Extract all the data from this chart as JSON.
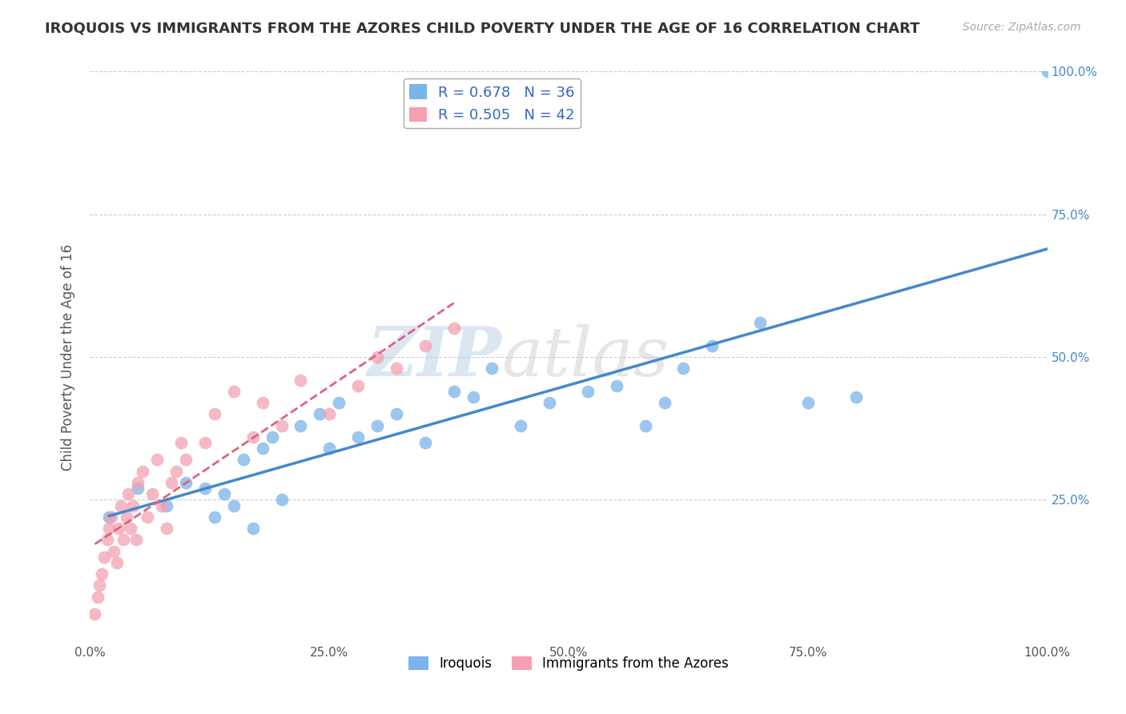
{
  "title": "IROQUOIS VS IMMIGRANTS FROM THE AZORES CHILD POVERTY UNDER THE AGE OF 16 CORRELATION CHART",
  "source": "Source: ZipAtlas.com",
  "ylabel": "Child Poverty Under the Age of 16",
  "r_iroquois": 0.678,
  "n_iroquois": 36,
  "r_azores": 0.505,
  "n_azores": 42,
  "xlim": [
    0,
    1.0
  ],
  "ylim": [
    0,
    1.0
  ],
  "xtick_labels": [
    "0.0%",
    "25.0%",
    "50.0%",
    "75.0%",
    "100.0%"
  ],
  "xtick_vals": [
    0.0,
    0.25,
    0.5,
    0.75,
    1.0
  ],
  "ytick_vals": [
    0.25,
    0.5,
    0.75,
    1.0
  ],
  "ytick_labels": [
    "25.0%",
    "50.0%",
    "75.0%",
    "100.0%"
  ],
  "color_iroquois": "#7ab4e8",
  "color_azores": "#f4a0b0",
  "line_color_iroquois": "#4488cc",
  "line_color_azores": "#e06080",
  "background_color": "#ffffff",
  "watermark_text": "ZIP",
  "watermark_text2": "atlas",
  "iroquois_x": [
    0.02,
    0.05,
    0.08,
    0.1,
    0.12,
    0.13,
    0.14,
    0.15,
    0.16,
    0.17,
    0.18,
    0.19,
    0.2,
    0.22,
    0.24,
    0.25,
    0.26,
    0.28,
    0.3,
    0.32,
    0.35,
    0.38,
    0.4,
    0.42,
    0.45,
    0.48,
    0.52,
    0.55,
    0.58,
    0.6,
    0.62,
    0.65,
    0.7,
    0.75,
    0.8,
    1.0
  ],
  "iroquois_y": [
    0.22,
    0.27,
    0.24,
    0.28,
    0.27,
    0.22,
    0.26,
    0.24,
    0.32,
    0.2,
    0.34,
    0.36,
    0.25,
    0.38,
    0.4,
    0.34,
    0.42,
    0.36,
    0.38,
    0.4,
    0.35,
    0.44,
    0.43,
    0.48,
    0.38,
    0.42,
    0.44,
    0.45,
    0.38,
    0.42,
    0.48,
    0.52,
    0.56,
    0.42,
    0.43,
    1.0
  ],
  "azores_x": [
    0.005,
    0.008,
    0.01,
    0.012,
    0.015,
    0.018,
    0.02,
    0.022,
    0.025,
    0.028,
    0.03,
    0.032,
    0.035,
    0.038,
    0.04,
    0.042,
    0.045,
    0.048,
    0.05,
    0.055,
    0.06,
    0.065,
    0.07,
    0.075,
    0.08,
    0.085,
    0.09,
    0.095,
    0.1,
    0.12,
    0.13,
    0.15,
    0.17,
    0.18,
    0.2,
    0.22,
    0.25,
    0.28,
    0.3,
    0.32,
    0.35,
    0.38
  ],
  "azores_y": [
    0.05,
    0.08,
    0.1,
    0.12,
    0.15,
    0.18,
    0.2,
    0.22,
    0.16,
    0.14,
    0.2,
    0.24,
    0.18,
    0.22,
    0.26,
    0.2,
    0.24,
    0.18,
    0.28,
    0.3,
    0.22,
    0.26,
    0.32,
    0.24,
    0.2,
    0.28,
    0.3,
    0.35,
    0.32,
    0.35,
    0.4,
    0.44,
    0.36,
    0.42,
    0.38,
    0.46,
    0.4,
    0.45,
    0.5,
    0.48,
    0.52,
    0.55
  ]
}
